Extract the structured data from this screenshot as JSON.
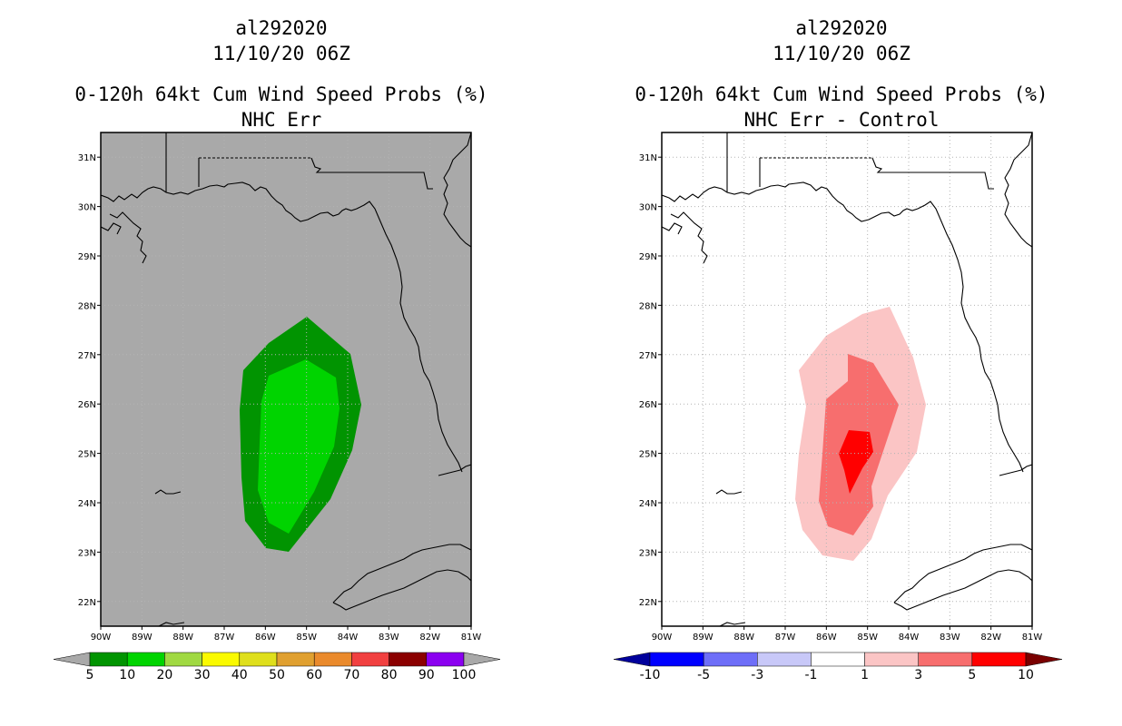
{
  "left": {
    "storm_id": "al292020",
    "datetime": "11/10/20 06Z",
    "title": "0-120h 64kt Cum Wind Speed Probs (%)",
    "subtitle": "NHC Err",
    "background": "#a9a9a9",
    "colorbar": {
      "colors": [
        "#019401",
        "#00d400",
        "#a0d942",
        "#fafa00",
        "#dfdf1c",
        "#e0a030",
        "#ea8a2c",
        "#f14040",
        "#8b0000",
        "#8b00f0"
      ],
      "labels": [
        "5",
        "10",
        "20",
        "30",
        "40",
        "50",
        "60",
        "70",
        "80",
        "90",
        "100"
      ],
      "end_color": "#a9a9a9"
    }
  },
  "right": {
    "storm_id": "al292020",
    "datetime": "11/10/20 06Z",
    "title": "0-120h 64kt Cum Wind Speed Probs (%)",
    "subtitle": "NHC Err - Control",
    "background": "#ffffff",
    "colorbar": {
      "colors": [
        "#0000ff",
        "#6e6ef8",
        "#c8c8f8",
        "#ffffff",
        "#fbc5c5",
        "#f76e6e",
        "#ff0000"
      ],
      "labels": [
        "-10",
        "-5",
        "-3",
        "-1",
        "1",
        "3",
        "5",
        "10"
      ],
      "low_end_color": "#00009c",
      "high_end_color": "#7a0000"
    }
  },
  "axes": {
    "lon_labels": [
      "90W",
      "89W",
      "88W",
      "87W",
      "86W",
      "85W",
      "84W",
      "83W",
      "82W",
      "81W"
    ],
    "lat_labels": [
      "31N",
      "30N",
      "29N",
      "28N",
      "27N",
      "26N",
      "25N",
      "24N",
      "23N",
      "22N"
    ],
    "lon_range": [
      -90,
      -81
    ],
    "lat_range": [
      21.5,
      31.5
    ]
  }
}
